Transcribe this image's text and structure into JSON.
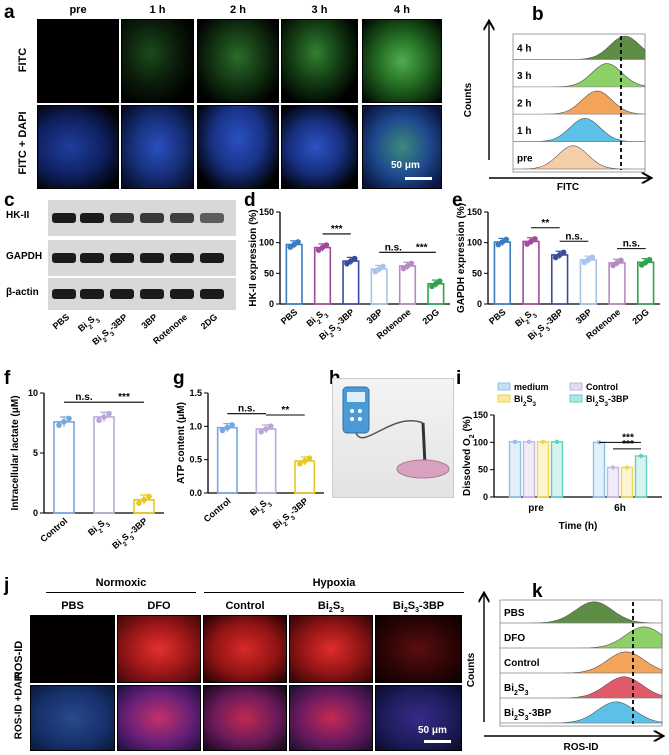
{
  "panels": {
    "a": "a",
    "b": "b",
    "c": "c",
    "d": "d",
    "e": "e",
    "f": "f",
    "g": "g",
    "h": "h",
    "i": "i",
    "j": "j",
    "k": "k"
  },
  "panel_a": {
    "columns": [
      "pre",
      "1 h",
      "2 h",
      "3 h",
      "4 h"
    ],
    "rows": [
      "FITC",
      "FITC + DAPI"
    ],
    "scale_bar": "50 μm"
  },
  "panel_b": {
    "ylabel": "Counts",
    "xlabel": "FITC",
    "labels": [
      "4 h",
      "3 h",
      "2 h",
      "1 h",
      "pre"
    ],
    "colors": [
      "#5e8e46",
      "#8ed068",
      "#f3a45a",
      "#5cc0e8",
      "#f6cda9"
    ]
  },
  "panel_c": {
    "bands": [
      "HK-II",
      "GAPDH",
      "β-actin"
    ],
    "lanes": [
      "PBS",
      "Bi2S3",
      "Bi2S3-3BP",
      "3BP",
      "Rotenone",
      "2DG"
    ]
  },
  "chart_data": [
    {
      "panel": "d",
      "type": "bar",
      "ylabel": "HK-II expression (%)",
      "ylim": [
        0,
        150
      ],
      "yticks": [
        0,
        50,
        100,
        150
      ],
      "categories": [
        "PBS",
        "Bi2S3",
        "Bi2S3-3BP",
        "3BP",
        "Rotenone",
        "2DG"
      ],
      "values": [
        97,
        92,
        70,
        57,
        62,
        33
      ],
      "colors": [
        "#3b7bbf",
        "#a04a9a",
        "#3a4b9c",
        "#a9c4ea",
        "#b58ac0",
        "#2ea34b"
      ],
      "sig": [
        {
          "from": 1,
          "to": 2,
          "label": "***"
        },
        {
          "from": 3,
          "to": 4,
          "label": "n.s."
        },
        {
          "from": 4,
          "to": 5,
          "label": "***"
        }
      ]
    },
    {
      "panel": "e",
      "type": "bar",
      "ylabel": "GAPDH expression (%)",
      "ylim": [
        0,
        150
      ],
      "yticks": [
        0,
        50,
        100,
        150
      ],
      "categories": [
        "PBS",
        "Bi2S3",
        "Bi2S3-3BP",
        "3BP",
        "Rotenone",
        "2DG"
      ],
      "values": [
        101,
        102,
        80,
        72,
        67,
        68
      ],
      "colors": [
        "#3b7bbf",
        "#a04a9a",
        "#3a4b9c",
        "#a9c4ea",
        "#b58ac0",
        "#2ea34b"
      ],
      "sig": [
        {
          "from": 1,
          "to": 2,
          "label": "**"
        },
        {
          "from": 2,
          "to": 3,
          "label": "n.s."
        },
        {
          "from": 4,
          "to": 5,
          "label": "n.s."
        }
      ]
    },
    {
      "panel": "f",
      "type": "bar",
      "ylabel": "Intracellular lactate (μM)",
      "ylim": [
        0,
        10
      ],
      "yticks": [
        0,
        5,
        10
      ],
      "categories": [
        "Control",
        "Bi2S3",
        "Bi2S3-3BP"
      ],
      "values": [
        7.6,
        8.0,
        1.1
      ],
      "colors": [
        "#73a8e0",
        "#b9a8d8",
        "#e8c81e"
      ],
      "sig": [
        {
          "from": 0,
          "to": 1,
          "label": "n.s."
        },
        {
          "from": 1,
          "to": 2,
          "label": "***"
        }
      ]
    },
    {
      "panel": "g",
      "type": "bar",
      "ylabel": "ATP content (μM)",
      "ylim": [
        0,
        1.5
      ],
      "yticks": [
        0.0,
        0.5,
        1.0,
        1.5
      ],
      "categories": [
        "Control",
        "Bi2S3",
        "Bi2S3-3BP"
      ],
      "values": [
        0.98,
        0.96,
        0.48
      ],
      "colors": [
        "#73a8e0",
        "#b9a8d8",
        "#e8c81e"
      ],
      "sig": [
        {
          "from": 0,
          "to": 1,
          "label": "n.s."
        },
        {
          "from": 1,
          "to": 2,
          "label": "**"
        }
      ]
    },
    {
      "panel": "i",
      "type": "bar",
      "ylabel": "Dissolved O2 (%)",
      "xlabel": "Time (h)",
      "ylim": [
        0,
        150
      ],
      "yticks": [
        0,
        50,
        100,
        150
      ],
      "categories": [
        "pre",
        "6h"
      ],
      "series": [
        {
          "name": "medium",
          "values": [
            101,
            100
          ],
          "color": "#8cc2ec"
        },
        {
          "name": "Control",
          "values": [
            101,
            54
          ],
          "color": "#c9b6e4"
        },
        {
          "name": "Bi2S3",
          "values": [
            101,
            54
          ],
          "color": "#f2d64a"
        },
        {
          "name": "Bi2S3-3BP",
          "values": [
            101,
            75
          ],
          "color": "#5ed0c4"
        }
      ],
      "sig": [
        {
          "label": "***"
        },
        {
          "label": "***"
        }
      ]
    }
  ],
  "panel_j": {
    "groups": [
      "Normoxic",
      "Hypoxia"
    ],
    "columns": [
      "PBS",
      "DFO",
      "Control",
      "Bi2S3",
      "Bi2S3-3BP"
    ],
    "rows": [
      "ROS-ID",
      "ROS-ID +DAPI"
    ],
    "scale_bar": "50 μm"
  },
  "panel_k": {
    "ylabel": "Counts",
    "xlabel": "ROS-ID",
    "labels": [
      "PBS",
      "DFO",
      "Control",
      "Bi2S3",
      "Bi2S3-3BP"
    ],
    "colors": [
      "#5e8e46",
      "#8ed068",
      "#f3a45a",
      "#e05a6a",
      "#5cc0e8"
    ]
  }
}
